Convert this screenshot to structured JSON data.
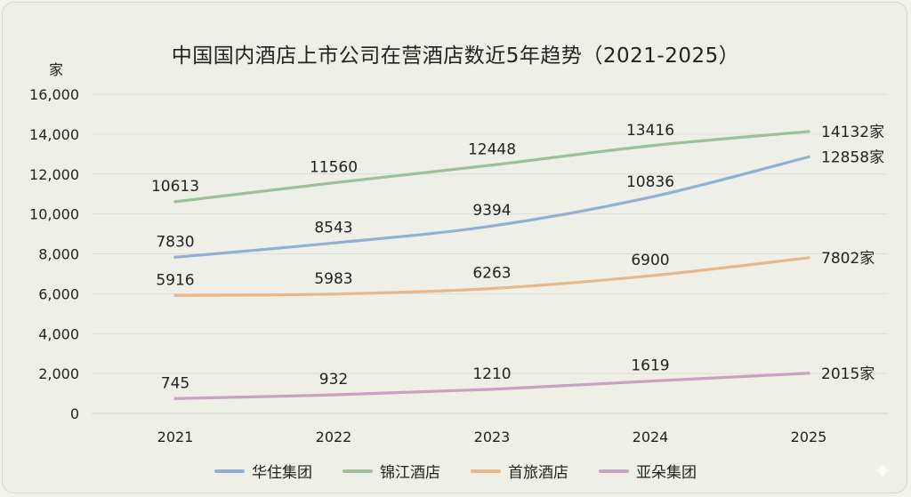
{
  "chart_data": {
    "type": "line",
    "title": "中国国内酒店上市公司在营酒店数近5年趋势（2021-2025）",
    "ylabel": "家",
    "xlabel": "",
    "categories": [
      "2021",
      "2022",
      "2023",
      "2024",
      "2025"
    ],
    "ylim": [
      0,
      16000
    ],
    "yticks": [
      0,
      2000,
      4000,
      6000,
      8000,
      10000,
      12000,
      14000,
      16000
    ],
    "ytick_labels": [
      "0",
      "2,000",
      "4,000",
      "6,000",
      "8,000",
      "10,000",
      "12,000",
      "14,000",
      "16,000"
    ],
    "grid": true,
    "legend_position": "bottom",
    "series": [
      {
        "name": "华住集团",
        "color": "#8fb0d2",
        "values": [
          7830,
          8543,
          9394,
          10836,
          12858
        ],
        "labels": [
          "7830",
          "8543",
          "9394",
          "10836",
          "12858家"
        ]
      },
      {
        "name": "锦江酒店",
        "color": "#9cc09a",
        "values": [
          10613,
          11560,
          12448,
          13416,
          14132
        ],
        "labels": [
          "10613",
          "11560",
          "12448",
          "13416",
          "14132家"
        ]
      },
      {
        "name": "首旅酒店",
        "color": "#e8b88a",
        "values": [
          5916,
          5983,
          6263,
          6900,
          7802
        ],
        "labels": [
          "5916",
          "5983",
          "6263",
          "6900",
          "7802家"
        ]
      },
      {
        "name": "亚朵集团",
        "color": "#c7a2c3",
        "values": [
          745,
          932,
          1210,
          1619,
          2015
        ],
        "labels": [
          "745",
          "932",
          "1210",
          "1619",
          "2015家"
        ]
      }
    ]
  },
  "icons": {
    "corner": "sparkle-icon"
  }
}
